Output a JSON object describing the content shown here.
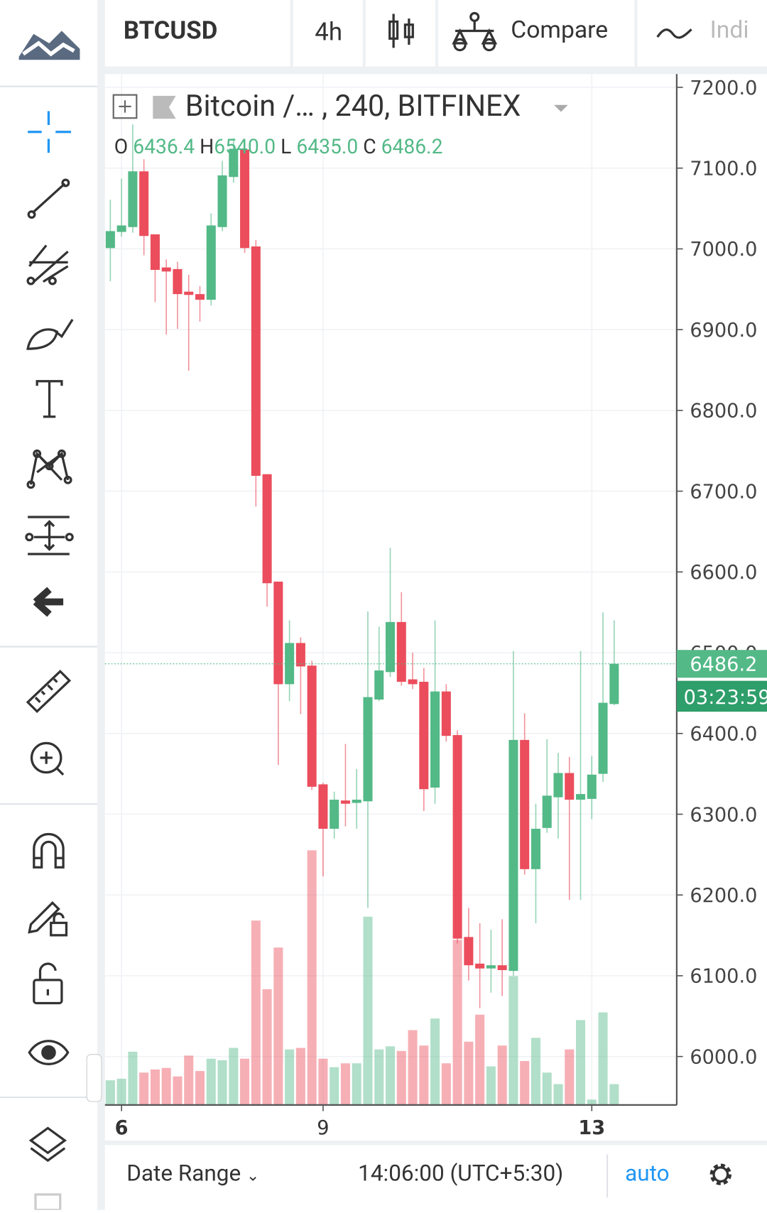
{
  "toolbar": {
    "symbol": "BTCUSD",
    "interval": "4h",
    "compare": "Compare",
    "indicators": "Indi"
  },
  "footer": {
    "date_range": "Date Range",
    "time": "14:06:00 (UTC+5:30)",
    "auto": "auto"
  },
  "chart_data": {
    "type": "candlestick",
    "title": "Bitcoin /… , 240, BITFINEX",
    "ohlc_legend": {
      "o_label": "O",
      "o": "6436.4",
      "h_label": "H",
      "h": "6540.0",
      "l_label": "L",
      "l": "6435.0",
      "c_label": "C",
      "c": "6486.2"
    },
    "last_price": {
      "value": 6486.2,
      "label": "6486.2"
    },
    "countdown": "03:23:59",
    "colors": {
      "up": "#53b987",
      "down": "#eb4d5c"
    },
    "candles": {
      "open": [
        7001,
        7021,
        7027,
        7096,
        7018,
        6977,
        6975,
        6947,
        6944,
        6937,
        7027,
        7089,
        7123,
        7003,
        6721,
        6588,
        6461,
        6512,
        6484,
        6337,
        6282,
        6317,
        6314,
        6316,
        6442,
        6476,
        6538,
        6467,
        6464,
        6333,
        6452,
        6398,
        6148,
        6115,
        6109,
        6113,
        6106,
        6392,
        6232,
        6283,
        6321,
        6351,
        6318,
        6319,
        6350,
        6436.4
      ],
      "high": [
        7061,
        7087,
        7154,
        7111,
        7018,
        6987,
        6984,
        6968,
        6954,
        7044,
        7109,
        7137,
        7130,
        7011,
        6721,
        6588,
        6540,
        6519,
        6490,
        6339,
        6328,
        6387,
        6356,
        6551,
        6532,
        6630,
        6575,
        6500,
        6481,
        6540,
        6461,
        6404,
        6184,
        6165,
        6157,
        6170,
        6502,
        6425,
        6313,
        6393,
        6376,
        6371,
        6502,
        6372,
        6550,
        6540.0
      ],
      "low": [
        6960,
        7015,
        7020,
        6992,
        6934,
        6894,
        6901,
        6849,
        6910,
        6930,
        7022,
        7082,
        6995,
        6681,
        6557,
        6361,
        6440,
        6424,
        6330,
        6223,
        6270,
        6285,
        6282,
        6184,
        6440,
        6470,
        6459,
        6455,
        6304,
        6313,
        6390,
        6140,
        6094,
        6060,
        6079,
        6075,
        6100,
        6225,
        6165,
        6277,
        6270,
        6194,
        6194,
        6294,
        6340,
        6435.0
      ],
      "close": [
        7022,
        7029,
        7096,
        7016,
        6974,
        6972,
        6944,
        6943,
        6937,
        7029,
        7091,
        7124,
        7001,
        6719,
        6586,
        6461,
        6512,
        6483,
        6334,
        6282,
        6318,
        6313,
        6318,
        6445,
        6478,
        6538,
        6464,
        6461,
        6331,
        6452,
        6397,
        6146,
        6113,
        6109,
        6113,
        6107,
        6392,
        6232,
        6282,
        6323,
        6351,
        6318,
        6325,
        6349,
        6438,
        6486.2
      ]
    },
    "volumes": [
      32,
      34,
      69,
      42,
      46,
      48,
      37,
      64,
      44,
      60,
      58,
      74,
      60,
      239,
      150,
      204,
      72,
      74,
      330,
      60,
      49,
      54,
      54,
      244,
      72,
      76,
      70,
      97,
      77,
      112,
      54,
      214,
      82,
      117,
      50,
      77,
      167,
      57,
      87,
      42,
      27,
      72,
      110,
      7,
      120,
      27
    ],
    "ylim": [
      5940,
      7230
    ],
    "yticks": [
      {
        "value": 6000,
        "label": "6000.0"
      },
      {
        "value": 6100,
        "label": "6100.0"
      },
      {
        "value": 6200,
        "label": "6200.0"
      },
      {
        "value": 6300,
        "label": "6300.0"
      },
      {
        "value": 6400,
        "label": "6400.0"
      },
      {
        "value": 6500,
        "label": "6500.0"
      },
      {
        "value": 6600,
        "label": "6600.0"
      },
      {
        "value": 6700,
        "label": "6700.0"
      },
      {
        "value": 6800,
        "label": "6800.0"
      },
      {
        "value": 6900,
        "label": "6900.0"
      },
      {
        "value": 7000,
        "label": "7000.0"
      },
      {
        "value": 7100,
        "label": "7100.0"
      },
      {
        "value": 7200,
        "label": "7200.0"
      }
    ],
    "xticks": [
      {
        "value": 1,
        "label": "6"
      },
      {
        "value": 19,
        "label": "9"
      },
      {
        "value": 43,
        "label": "13"
      }
    ],
    "grid": true
  }
}
